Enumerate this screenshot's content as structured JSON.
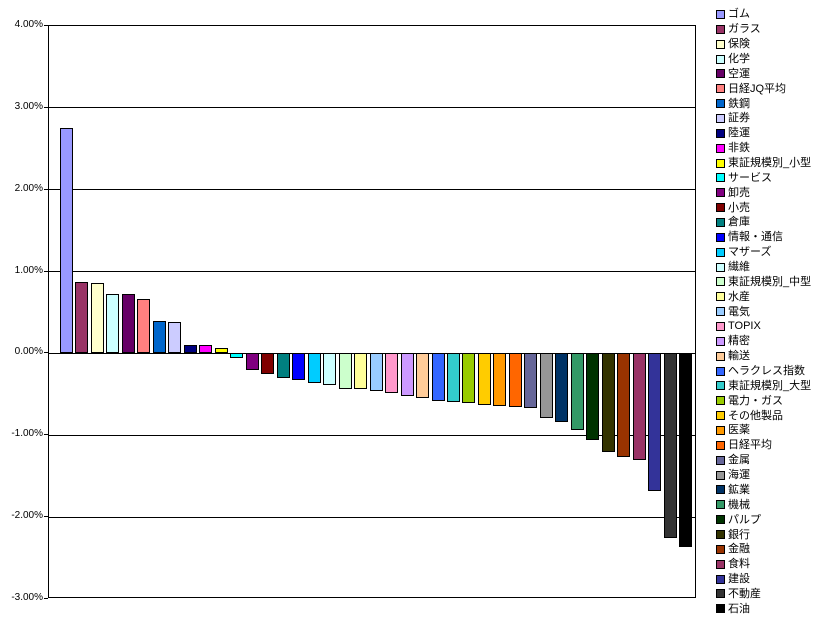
{
  "chart_data": {
    "type": "bar",
    "title": "",
    "xlabel": "",
    "ylabel": "",
    "ylim": [
      -3,
      4
    ],
    "grid": true,
    "legend_position": "right",
    "y_ticks": [
      "4.00%",
      "3.00%",
      "2.00%",
      "1.00%",
      "0.00%",
      "-1.00%",
      "-2.00%",
      "-3.00%"
    ],
    "y_tick_values": [
      4,
      3,
      2,
      1,
      0,
      -1,
      -2,
      -3
    ],
    "categories": [
      "ゴム",
      "ガラス",
      "保険",
      "化学",
      "空運",
      "日経JQ平均",
      "鉄鋼",
      "証券",
      "陸運",
      "非鉄",
      "東証規模別_小型",
      "サービス",
      "卸売",
      "小売",
      "倉庫",
      "情報・通信",
      "マザーズ",
      "繊維",
      "東証規模別_中型",
      "水産",
      "電気",
      "TOPIX",
      "精密",
      "輸送",
      "ヘラクレス指数",
      "東証規模別_大型",
      "電力・ガス",
      "その他製品",
      "医薬",
      "日経平均",
      "金属",
      "海運",
      "鉱業",
      "機械",
      "パルプ",
      "銀行",
      "金融",
      "食料",
      "建設",
      "不動産",
      "石油"
    ],
    "values": [
      2.75,
      0.87,
      0.86,
      0.73,
      0.72,
      0.67,
      0.4,
      0.39,
      0.1,
      0.1,
      0.07,
      -0.05,
      -0.2,
      -0.25,
      -0.3,
      -0.33,
      -0.36,
      -0.39,
      -0.43,
      -0.44,
      -0.46,
      -0.48,
      -0.52,
      -0.54,
      -0.58,
      -0.59,
      -0.61,
      -0.63,
      -0.64,
      -0.65,
      -0.67,
      -0.79,
      -0.84,
      -0.93,
      -1.06,
      -1.2,
      -1.26,
      -1.3,
      -1.68,
      -2.26,
      -2.37
    ],
    "colors": [
      "#9999FF",
      "#993366",
      "#FFFFCC",
      "#CCFFFF",
      "#660066",
      "#FF8080",
      "#0066CC",
      "#CCCCFF",
      "#000080",
      "#FF00FF",
      "#FFFF00",
      "#00FFFF",
      "#800080",
      "#800000",
      "#008080",
      "#0000FF",
      "#00CCFF",
      "#CCFFFF",
      "#CCFFCC",
      "#FFFF99",
      "#99CCFF",
      "#FF99CC",
      "#CC99FF",
      "#FFCC99",
      "#3366FF",
      "#33CCCC",
      "#99CC00",
      "#FFCC00",
      "#FF9900",
      "#FF6600",
      "#666699",
      "#969696",
      "#003366",
      "#339966",
      "#003300",
      "#333300",
      "#993300",
      "#993366",
      "#333399",
      "#333333",
      "#000000"
    ]
  }
}
